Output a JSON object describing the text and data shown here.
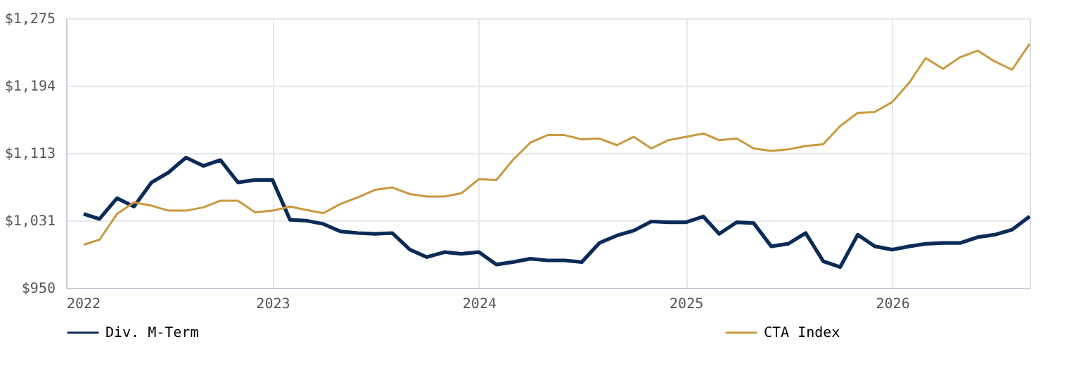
{
  "chart_data": {
    "type": "line",
    "x": [
      "2022-02",
      "2022-03",
      "2022-04",
      "2022-05",
      "2022-06",
      "2022-07",
      "2022-08",
      "2022-09",
      "2022-10",
      "2022-11",
      "2022-12",
      "2023-01",
      "2023-02",
      "2023-03",
      "2023-04",
      "2023-05",
      "2023-06",
      "2023-07",
      "2023-08",
      "2023-09",
      "2023-10",
      "2023-11",
      "2023-12",
      "2024-01",
      "2024-02",
      "2024-03",
      "2024-04",
      "2024-05",
      "2024-06",
      "2024-07",
      "2024-08",
      "2024-09",
      "2024-10",
      "2024-11",
      "2024-12",
      "2025-01",
      "2025-02",
      "2025-03",
      "2025-04",
      "2025-05",
      "2025-06",
      "2025-07",
      "2025-08",
      "2025-09",
      "2025-10",
      "2025-11",
      "2025-12",
      "2026-01",
      "2026-02",
      "2026-03",
      "2026-04",
      "2026-05",
      "2026-06",
      "2026-07",
      "2026-08",
      "2026-09"
    ],
    "series": [
      {
        "name": "Div. M-Term",
        "color": "#0b2b57",
        "values": [
          1039,
          1033,
          1058,
          1048,
          1077,
          1089,
          1107,
          1097,
          1104,
          1077,
          1080,
          1080,
          1032,
          1031,
          1027,
          1018,
          1016,
          1015,
          1016,
          996,
          987,
          993,
          991,
          993,
          978,
          981,
          985,
          983,
          983,
          981,
          1004,
          1013,
          1019,
          1030,
          1029,
          1029,
          1036,
          1015,
          1029,
          1028,
          1000,
          1003,
          1016,
          982,
          975,
          1014,
          1000,
          996,
          1000,
          1003,
          1004,
          1004,
          1011,
          1014,
          1020,
          1036
        ]
      },
      {
        "name": "CTA Index",
        "color": "#c9993f",
        "values": [
          1002,
          1008,
          1039,
          1053,
          1049,
          1043,
          1043,
          1047,
          1055,
          1055,
          1041,
          1043,
          1048,
          1044,
          1040,
          1051,
          1059,
          1068,
          1071,
          1063,
          1060,
          1060,
          1064,
          1081,
          1080,
          1104,
          1125,
          1134,
          1134,
          1129,
          1130,
          1122,
          1132,
          1118,
          1128,
          1132,
          1136,
          1128,
          1130,
          1118,
          1115,
          1117,
          1121,
          1123,
          1145,
          1161,
          1162,
          1174,
          1198,
          1227,
          1214,
          1228,
          1236,
          1223,
          1213,
          1244
        ]
      }
    ],
    "xlim": [
      "2022-01-01",
      "2026-09-01"
    ],
    "xticks": [
      "2022",
      "2023",
      "2024",
      "2025",
      "2026"
    ],
    "ylim": [
      950,
      1275
    ],
    "yticks": [
      {
        "value": 950,
        "label": "$950"
      },
      {
        "value": 1031.25,
        "label": "$1,031"
      },
      {
        "value": 1112.5,
        "label": "$1,113"
      },
      {
        "value": 1193.75,
        "label": "$1,194"
      },
      {
        "value": 1275,
        "label": "$1,275"
      }
    ],
    "grid": true,
    "legend": "bottom",
    "marker": "none",
    "line_style": "solid"
  }
}
